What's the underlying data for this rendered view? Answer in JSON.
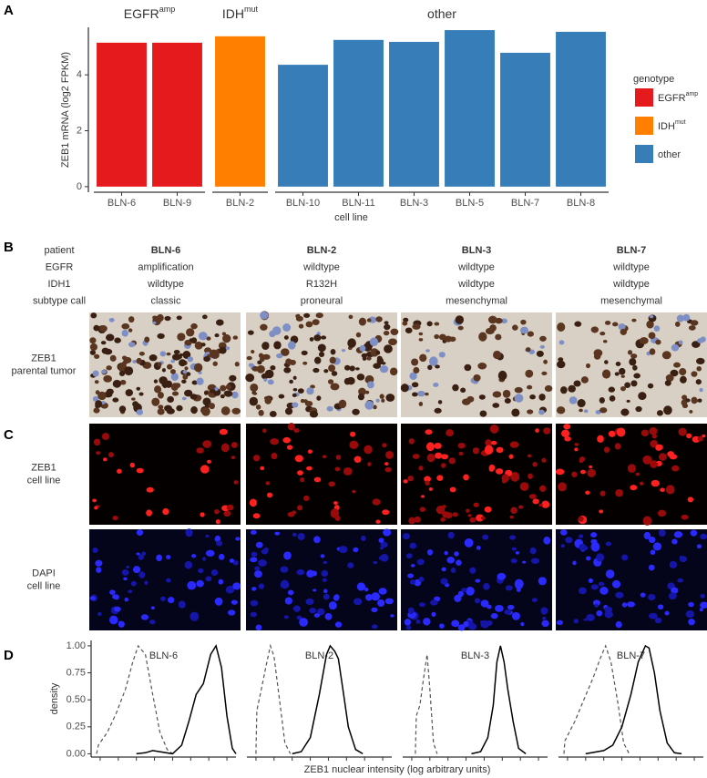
{
  "panel_labels": [
    "A",
    "B",
    "C",
    "D"
  ],
  "chart_data": [
    {
      "type": "bar",
      "ylabel": "ZEB1 mRNA (log2 FPKM)",
      "xlabel": "cell line",
      "ylim": [
        -0.2,
        5.7
      ],
      "yticks": [
        0,
        2,
        4
      ],
      "legend_title": "genotype",
      "legend_position": "right",
      "facets": [
        {
          "label": {
            "text": "EGFR",
            "sup": "amp"
          },
          "color": "#e41a1c",
          "categories": [
            "BLN-6",
            "BLN-9"
          ],
          "values": [
            5.15,
            5.15
          ]
        },
        {
          "label": {
            "text": "IDH",
            "sup": "mut"
          },
          "color": "#ff7f00",
          "categories": [
            "BLN-2"
          ],
          "values": [
            5.38
          ]
        },
        {
          "label": {
            "text": "other"
          },
          "color": "#377eb8",
          "categories": [
            "BLN-10",
            "BLN-11",
            "BLN-3",
            "BLN-5",
            "BLN-7",
            "BLN-8"
          ],
          "values": [
            4.36,
            5.25,
            5.18,
            5.6,
            4.79,
            5.54
          ]
        }
      ]
    },
    {
      "type": "density",
      "ylabel": "density",
      "xlabel": "ZEB1 nuclear intensity (log arbitrary units)",
      "xlim": [
        0,
        8
      ],
      "xticks": [
        0.5,
        1.5,
        2.5,
        3.5,
        4.5,
        5.5,
        6.5,
        7.5
      ],
      "ylim": [
        -0.03,
        1.05
      ],
      "yticks": [
        {
          "value": 0,
          "label": "0.00"
        },
        {
          "value": 0.25,
          "label": "0.25"
        },
        {
          "value": 0.5,
          "label": "0.50"
        },
        {
          "value": 0.75,
          "label": "0.75"
        },
        {
          "value": 1,
          "label": "1.00"
        }
      ],
      "facets": [
        {
          "title": "BLN-6",
          "series": [
            {
              "color": "#555555",
              "dashed": true,
              "x": [
                0.3,
                0.4,
                0.9,
                1.4,
                1.9,
                2.3,
                2.6,
                3.0,
                3.4,
                3.8,
                4.2,
                4.5
              ],
              "values": [
                0,
                0.08,
                0.2,
                0.38,
                0.6,
                0.85,
                1.0,
                0.92,
                0.55,
                0.2,
                0.04,
                0
              ]
            },
            {
              "color": "#000000",
              "dashed": false,
              "x": [
                2.5,
                3.0,
                3.4,
                4.5,
                5.0,
                5.4,
                5.8,
                6.2,
                6.6,
                6.9,
                7.2,
                7.5,
                7.8,
                8.0
              ],
              "values": [
                0,
                0.01,
                0.03,
                0,
                0.08,
                0.3,
                0.55,
                0.65,
                0.92,
                1.0,
                0.8,
                0.35,
                0.05,
                0
              ]
            }
          ]
        },
        {
          "title": "BLN-2",
          "series": [
            {
              "color": "#555555",
              "dashed": true,
              "x": [
                0.5,
                0.55,
                0.8,
                1.1,
                1.3,
                1.5,
                1.8,
                2.1,
                2.4
              ],
              "values": [
                0,
                0.4,
                0.6,
                0.85,
                1.0,
                0.9,
                0.5,
                0.1,
                0
              ]
            },
            {
              "color": "#000000",
              "dashed": false,
              "x": [
                2.5,
                3.0,
                3.5,
                4.0,
                4.4,
                4.6,
                4.85,
                5.05,
                5.3,
                5.6,
                6.0,
                6.4
              ],
              "values": [
                0,
                0.02,
                0.15,
                0.55,
                0.92,
                1.0,
                0.95,
                0.88,
                0.6,
                0.25,
                0.04,
                0
              ]
            }
          ]
        },
        {
          "title": "BLN-3",
          "series": [
            {
              "color": "#555555",
              "dashed": true,
              "x": [
                0.7,
                0.75,
                0.95,
                1.15,
                1.35,
                1.5,
                1.7,
                1.9
              ],
              "values": [
                0,
                0.35,
                0.45,
                0.7,
                0.92,
                0.6,
                0.1,
                0
              ]
            },
            {
              "color": "#000000",
              "dashed": false,
              "x": [
                3.8,
                4.3,
                4.7,
                5.0,
                5.2,
                5.4,
                5.6,
                5.8,
                6.1,
                6.4,
                6.8
              ],
              "values": [
                0,
                0.02,
                0.15,
                0.45,
                0.85,
                1.0,
                0.85,
                0.6,
                0.3,
                0.05,
                0
              ]
            }
          ]
        },
        {
          "title": "BLN-7",
          "series": [
            {
              "color": "#555555",
              "dashed": true,
              "x": [
                0.3,
                0.35,
                0.9,
                1.4,
                1.9,
                2.3,
                2.6,
                2.9,
                3.3,
                3.6,
                3.9
              ],
              "values": [
                0,
                0.12,
                0.3,
                0.5,
                0.7,
                0.88,
                1.0,
                0.85,
                0.45,
                0.1,
                0
              ]
            },
            {
              "color": "#000000",
              "dashed": false,
              "x": [
                1.5,
                2.5,
                3.0,
                3.5,
                4.0,
                4.4,
                4.8,
                5.0,
                5.3,
                5.6,
                6.0,
                6.4,
                6.8
              ],
              "values": [
                0,
                0.03,
                0.08,
                0.25,
                0.55,
                0.85,
                1.0,
                0.98,
                0.75,
                0.4,
                0.1,
                0.01,
                0
              ]
            }
          ]
        }
      ]
    }
  ],
  "table": {
    "row_labels": [
      "patient",
      "EGFR",
      "IDH1",
      "subtype call"
    ],
    "columns": [
      {
        "cells": [
          {
            "text": "BLN-6",
            "color": "#e41a1c"
          },
          {
            "text": "amplification",
            "color": "#e41a1c"
          },
          {
            "text": "wildtype",
            "color": "#666666"
          },
          {
            "text": "classic",
            "color": "#666666"
          }
        ]
      },
      {
        "cells": [
          {
            "text": "BLN-2",
            "color": "#ff7f00"
          },
          {
            "text": "wildtype",
            "color": "#666666"
          },
          {
            "text": "R132H",
            "color": "#ff7f00"
          },
          {
            "text": "proneural",
            "color": "#666666"
          }
        ]
      },
      {
        "cells": [
          {
            "text": "BLN-3",
            "color": "#377eb8"
          },
          {
            "text": "wildtype",
            "color": "#666666"
          },
          {
            "text": "wildtype",
            "color": "#666666"
          },
          {
            "text": "mesenchymal",
            "color": "#666666"
          }
        ]
      },
      {
        "cells": [
          {
            "text": "BLN-7",
            "color": "#377eb8"
          },
          {
            "text": "wildtype",
            "color": "#666666"
          },
          {
            "text": "wildtype",
            "color": "#666666"
          },
          {
            "text": "mesenchymal",
            "color": "#666666"
          }
        ]
      }
    ]
  },
  "image_rows": [
    {
      "title": "ZEB1",
      "title_color": "#333333",
      "subtitle": "parental tumor"
    },
    {
      "title": "ZEB1",
      "title_color": "#e41a1c",
      "subtitle": "cell line"
    },
    {
      "title": "DAPI",
      "title_color": "#1a1adb",
      "subtitle": "cell line"
    }
  ]
}
